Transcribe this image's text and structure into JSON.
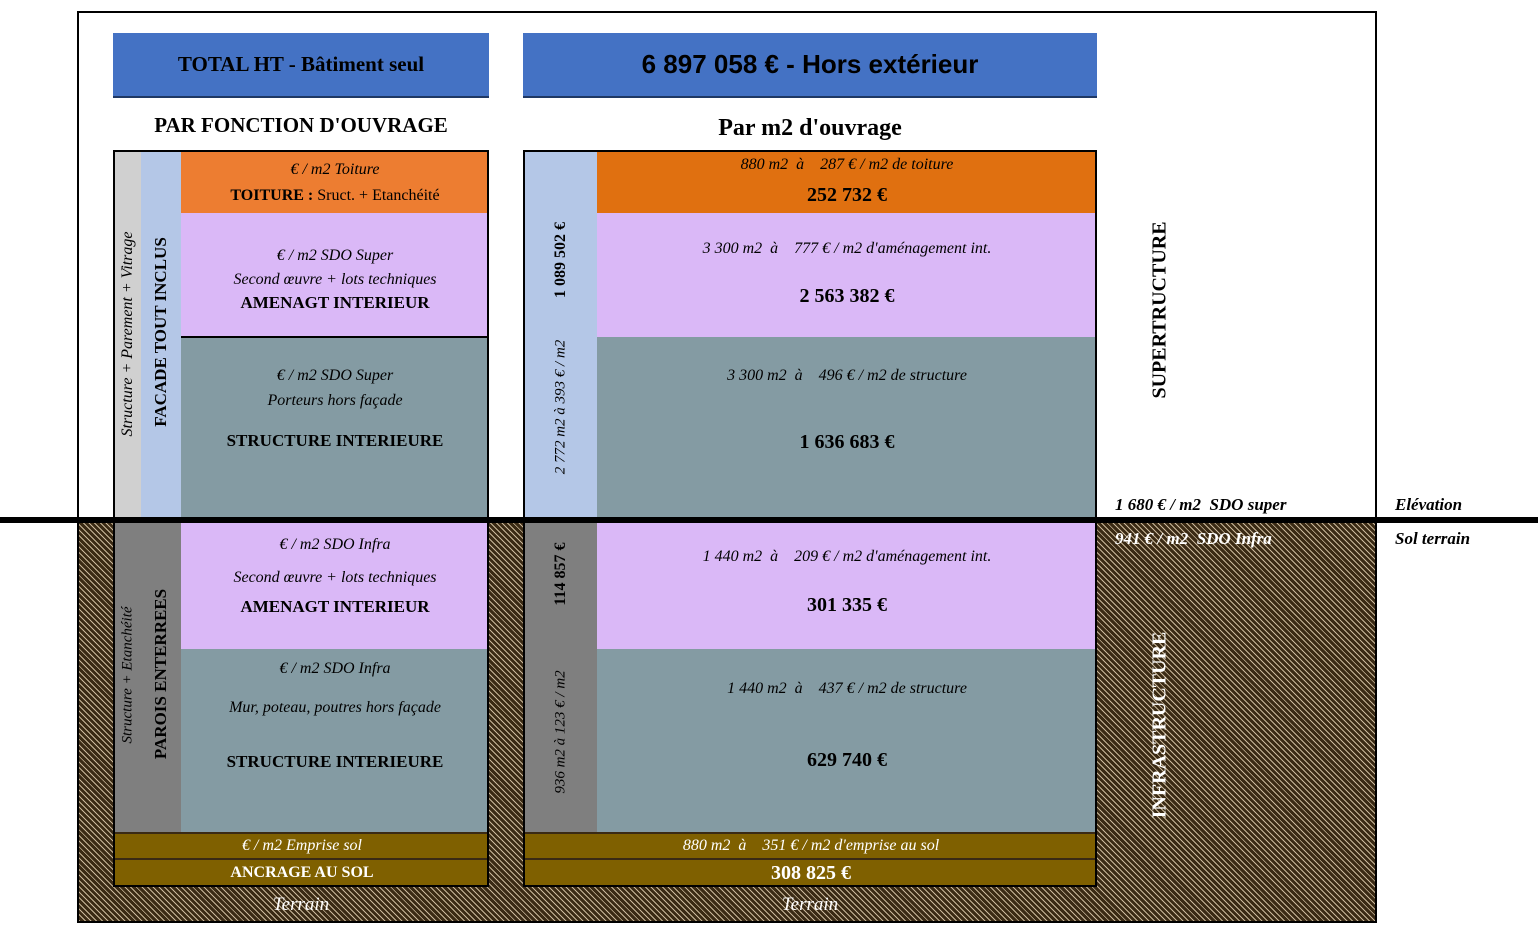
{
  "header": {
    "total_label": "TOTAL HT - Bâtiment seul",
    "total_value": "6 897 058  € - Hors extérieur"
  },
  "left": {
    "title": "PAR FONCTION D'OUVRAGE",
    "super_side_label": "Structure + Parement + Vitrage",
    "facade_label": "FACADE TOUT INCLUS",
    "toiture_sub": "€ / m2 Toiture",
    "toiture_title_bold": "TOITURE :",
    "toiture_title_rest": " Sruct. + Etanchéité",
    "amenagt_super_sub1": "€ / m2 SDO Super",
    "amenagt_super_sub2": "Second œuvre + lots techniques",
    "amenagt_super_title": "AMENAGT INTERIEUR",
    "struct_super_sub1": "€ / m2 SDO Super",
    "struct_super_sub2": "Porteurs hors façade",
    "struct_super_title": "STRUCTURE INTERIEURE",
    "infra_side_label": "Structure + Etanchéité",
    "parois_label": "PAROIS ENTERREES",
    "amenagt_infra_sub1": "€ / m2 SDO Infra",
    "amenagt_infra_sub2": "Second œuvre + lots techniques",
    "amenagt_infra_title": "AMENAGT INTERIEUR",
    "struct_infra_sub1": "€ / m2 SDO Infra",
    "struct_infra_sub2": "Mur, poteau, poutres hors façade",
    "struct_infra_title": "STRUCTURE INTERIEURE",
    "emprise_sub": "€ / m2 Emprise sol",
    "ancrage_title": "ANCRAGE AU SOL",
    "terrain": "Terrain"
  },
  "right": {
    "title": "Par m2 d'ouvrage",
    "facade_super_total": "1 089 502 €",
    "facade_super_ratio": "2 772 m2  à     393 € / m2",
    "toiture_line": "880 m2  à    287 € / m2 de toiture",
    "toiture_value": "252 732 €",
    "amenagt_super_line": "3 300 m2  à    777 € / m2 d'aménagement int.",
    "amenagt_super_value": "2 563 382 €",
    "struct_super_line": "3 300 m2  à    496 € / m2 de structure",
    "struct_super_value": "1 636 683 €",
    "facade_infra_total": "114 857 €",
    "facade_infra_ratio": "936 m2  à  123 € / m2",
    "amenagt_infra_line": "1 440 m2  à    209 € / m2 d'aménagement int.",
    "amenagt_infra_value": "301 335 €",
    "struct_infra_line": "1 440 m2  à    437 € / m2 de structure",
    "struct_infra_value": "629 740 €",
    "emprise_line": "880 m2  à    351 € / m2 d'emprise au sol",
    "ancrage_value": "308 825 €",
    "terrain": "Terrain"
  },
  "side": {
    "superstructure": "SUPERTRUCTURE",
    "infrastructure": "INFRASTRUCTURE",
    "sdo_super": "1 680 € / m2  SDO super",
    "sdo_infra": "941 € / m2  SDO Infra",
    "elevation": "Elévation",
    "sol_terrain": "Sol terrain"
  },
  "colors": {
    "header_blue": "#4472c4",
    "toiture": "#ed7d31",
    "amenagement": "#dab8f7",
    "structure": "#849ba3",
    "ancrage": "#7f6000",
    "facade_super": "#b4c7e7",
    "facade_infra": "#7f7f7f"
  }
}
